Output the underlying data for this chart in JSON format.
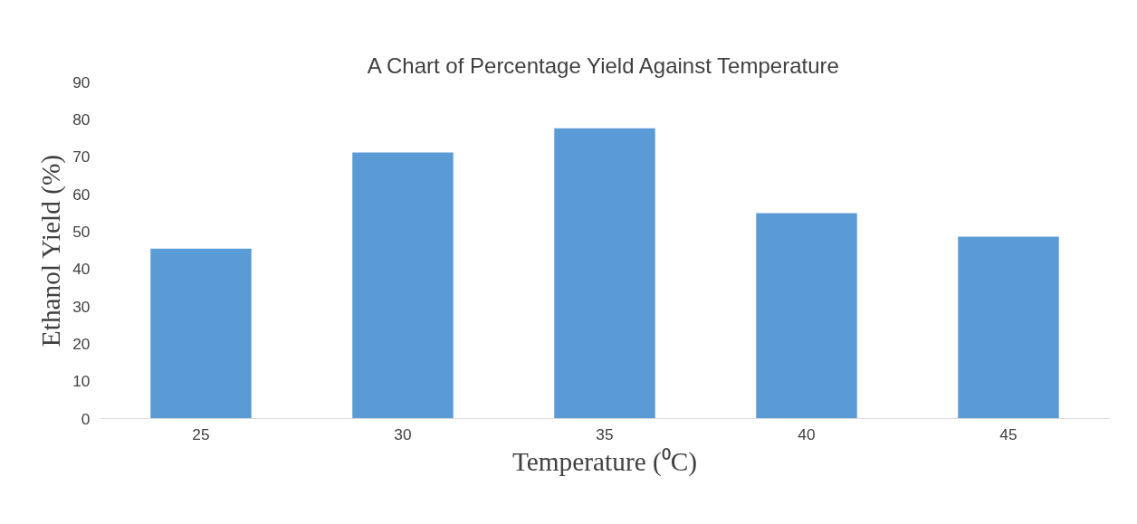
{
  "chart_data": {
    "type": "bar",
    "title": "A Chart of Percentage Yield Against Temperature",
    "xlabel": "Temperature (⁰C)",
    "ylabel": "Ethanol Yield (%)",
    "categories": [
      "25",
      "30",
      "35",
      "40",
      "45"
    ],
    "values": [
      45.4,
      71.1,
      77.6,
      54.9,
      48.6
    ],
    "color": "#5b9bd5",
    "ylim": [
      0,
      90
    ],
    "yticks": [
      0,
      10,
      20,
      30,
      40,
      50,
      60,
      70,
      80,
      90
    ],
    "grid": false
  }
}
